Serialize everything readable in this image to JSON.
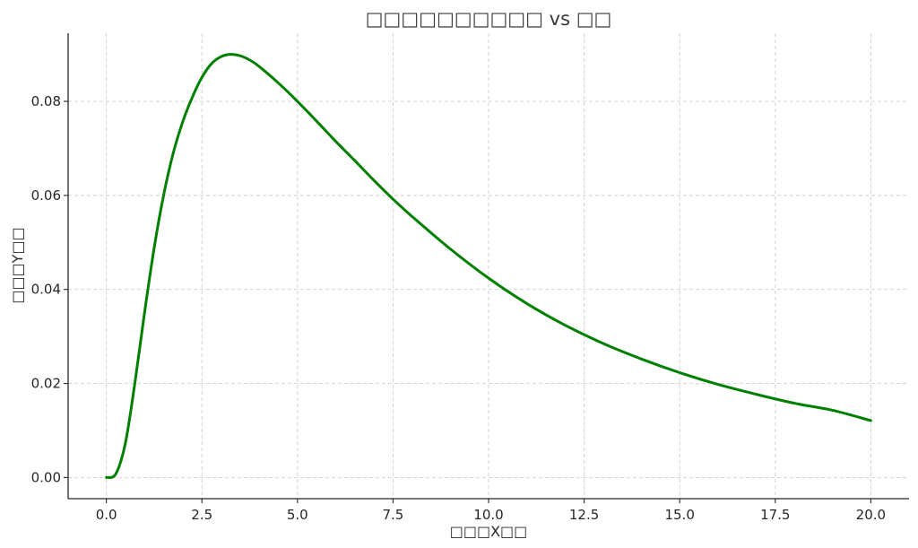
{
  "chart_data": {
    "type": "line",
    "title": "□□□□□□□□□□ vs □□",
    "xlabel": "□□□X□□",
    "ylabel": "□□□Y□□",
    "xlim": [
      -1,
      21
    ],
    "ylim": [
      -0.0045,
      0.0945
    ],
    "grid": true,
    "x_ticks": [
      0.0,
      2.5,
      5.0,
      7.5,
      10.0,
      12.5,
      15.0,
      17.5,
      20.0
    ],
    "x_tick_labels": [
      "0.0",
      "2.5",
      "5.0",
      "7.5",
      "10.0",
      "12.5",
      "15.0",
      "17.5",
      "20.0"
    ],
    "y_ticks": [
      0.0,
      0.02,
      0.04,
      0.06,
      0.08
    ],
    "y_tick_labels": [
      "0.00",
      "0.02",
      "0.04",
      "0.06",
      "0.08"
    ],
    "series": [
      {
        "color": "#008000",
        "x": [
          0,
          0.25,
          0.5,
          0.75,
          1,
          1.25,
          1.5,
          1.75,
          2,
          2.25,
          2.5,
          2.75,
          3,
          3.25,
          3.5,
          3.75,
          4,
          4.5,
          5,
          5.5,
          6,
          6.5,
          7,
          7.5,
          8,
          9,
          10,
          11,
          12,
          13,
          14,
          15,
          16,
          17,
          18,
          19,
          20
        ],
        "y": [
          0.0,
          0.0008,
          0.0074,
          0.0203,
          0.0351,
          0.0488,
          0.0601,
          0.069,
          0.0757,
          0.0809,
          0.0851,
          0.088,
          0.0895,
          0.09,
          0.0897,
          0.0888,
          0.0874,
          0.0839,
          0.08,
          0.0758,
          0.0715,
          0.0674,
          0.0632,
          0.0592,
          0.0555,
          0.0486,
          0.0424,
          0.037,
          0.0324,
          0.0285,
          0.0252,
          0.0223,
          0.0198,
          0.0177,
          0.0158,
          0.0143,
          0.0121
        ]
      }
    ]
  }
}
